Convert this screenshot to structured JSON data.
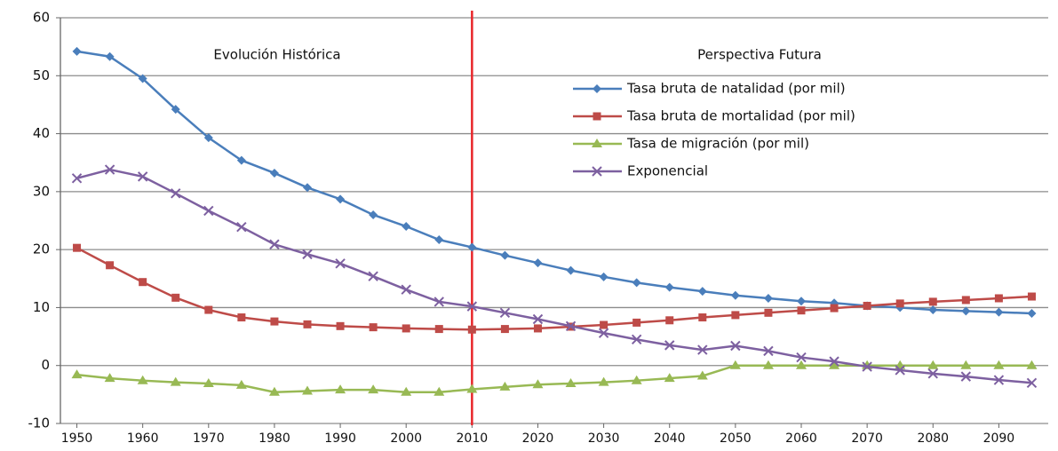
{
  "chart_data": {
    "type": "line",
    "annotations": [
      "Evolución  Histórica",
      "Perspectiva Futura"
    ],
    "x": [
      1950,
      1955,
      1960,
      1965,
      1970,
      1975,
      1980,
      1985,
      1990,
      1995,
      2000,
      2005,
      2010,
      2015,
      2020,
      2025,
      2030,
      2035,
      2040,
      2045,
      2050,
      2055,
      2060,
      2065,
      2070,
      2075,
      2080,
      2085,
      2090,
      2095
    ],
    "series": [
      {
        "name": "Tasa bruta de natalidad (por mil)",
        "color": "#4a7ebb",
        "marker": "diamond",
        "values": [
          54.2,
          53.3,
          49.5,
          44.2,
          39.3,
          35.4,
          33.2,
          30.7,
          28.7,
          26,
          24,
          21.7,
          20.4,
          19,
          17.7,
          16.4,
          15.3,
          14.3,
          13.5,
          12.8,
          12.1,
          11.6,
          11.1,
          10.8,
          10.3,
          10,
          9.6,
          9.4,
          9.2,
          9
        ]
      },
      {
        "name": "Tasa bruta de mortalidad (por mil)",
        "color": "#be4b48",
        "marker": "square",
        "values": [
          20.3,
          17.3,
          14.4,
          11.7,
          9.6,
          8.3,
          7.6,
          7.1,
          6.8,
          6.6,
          6.4,
          6.3,
          6.2,
          6.3,
          6.4,
          6.7,
          7,
          7.4,
          7.8,
          8.3,
          8.7,
          9.1,
          9.5,
          9.9,
          10.3,
          10.7,
          11,
          11.3,
          11.6,
          11.9
        ]
      },
      {
        "name": "Tasa de migración (por mil)",
        "color": "#98b954",
        "marker": "triangle",
        "values": [
          -1.6,
          -2.2,
          -2.6,
          -2.9,
          -3.1,
          -3.4,
          -4.6,
          -4.4,
          -4.2,
          -4.2,
          -4.6,
          -4.6,
          -4.1,
          -3.7,
          -3.3,
          -3.1,
          -2.9,
          -2.6,
          -2.2,
          -1.8,
          0,
          0,
          0,
          0,
          0,
          0,
          0,
          0,
          0,
          0
        ]
      },
      {
        "name": "Exponencial",
        "color": "#7d60a0",
        "marker": "x",
        "values": [
          32.3,
          33.8,
          32.6,
          29.7,
          26.7,
          23.9,
          20.9,
          19.2,
          17.6,
          15.4,
          13.1,
          11,
          10.2,
          9.1,
          8,
          6.8,
          5.6,
          4.5,
          3.5,
          2.7,
          3.4,
          2.5,
          1.4,
          0.7,
          -0.2,
          -0.8,
          -1.4,
          -1.9,
          -2.5,
          -3
        ]
      }
    ],
    "xlim": [
      1947.5,
      2097.5
    ],
    "xticks": [
      1950,
      1960,
      1970,
      1980,
      1990,
      2000,
      2010,
      2020,
      2030,
      2040,
      2050,
      2060,
      2070,
      2080,
      2090
    ],
    "ylim": [
      -10,
      60
    ],
    "yticks": [
      -10,
      0,
      10,
      20,
      30,
      40,
      50,
      60
    ],
    "grid": true,
    "reference_line": {
      "x": 2010,
      "color": "#e8262a"
    }
  }
}
